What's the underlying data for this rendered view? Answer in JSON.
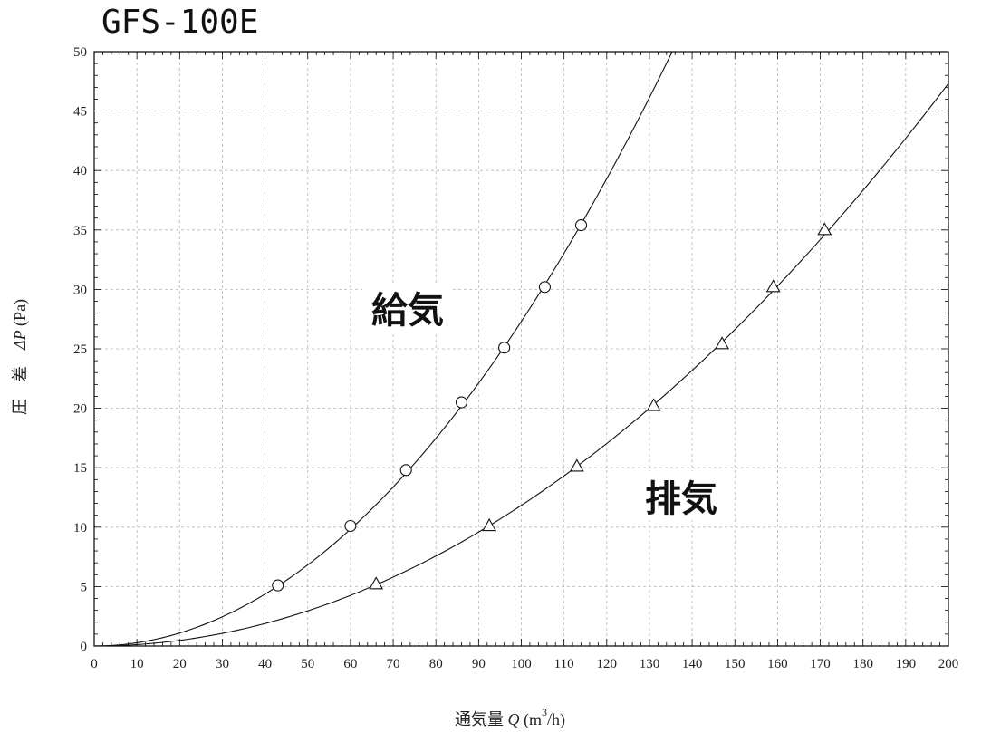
{
  "chart_data": {
    "type": "scatter",
    "title": "GFS-100E",
    "xlabel": {
      "prefix": "通気量 ",
      "symbol": "Q",
      "unit_open": " (m",
      "superscript": "3",
      "unit_close": "/h)"
    },
    "ylabel": {
      "prefix": "圧　差　",
      "symbol": "ΔP",
      "unit": " (Pa)"
    },
    "xlim": [
      0,
      200
    ],
    "ylim": [
      0,
      50
    ],
    "x_ticks": [
      "0",
      "10",
      "20",
      "30",
      "40",
      "50",
      "60",
      "70",
      "80",
      "90",
      "100",
      "110",
      "120",
      "130",
      "140",
      "150",
      "160",
      "170",
      "180",
      "190",
      "200"
    ],
    "y_ticks": [
      "0",
      "5",
      "10",
      "15",
      "20",
      "25",
      "30",
      "35",
      "40",
      "45",
      "50"
    ],
    "grid": true,
    "series": [
      {
        "name": "給気",
        "marker": "circle",
        "points": [
          [
            43,
            5.1
          ],
          [
            60,
            10.1
          ],
          [
            73,
            14.8
          ],
          [
            86,
            20.5
          ],
          [
            96,
            25.1
          ],
          [
            105.5,
            30.2
          ],
          [
            114,
            35.4
          ]
        ],
        "curve_coefficient": 0.00273
      },
      {
        "name": "排気",
        "marker": "triangle",
        "points": [
          [
            66,
            5.2
          ],
          [
            92.5,
            10.1
          ],
          [
            113,
            15.1
          ],
          [
            131,
            20.2
          ],
          [
            147,
            25.4
          ],
          [
            159,
            30.2
          ],
          [
            171,
            35.0
          ]
        ],
        "curve_coefficient": 0.001183
      }
    ]
  }
}
